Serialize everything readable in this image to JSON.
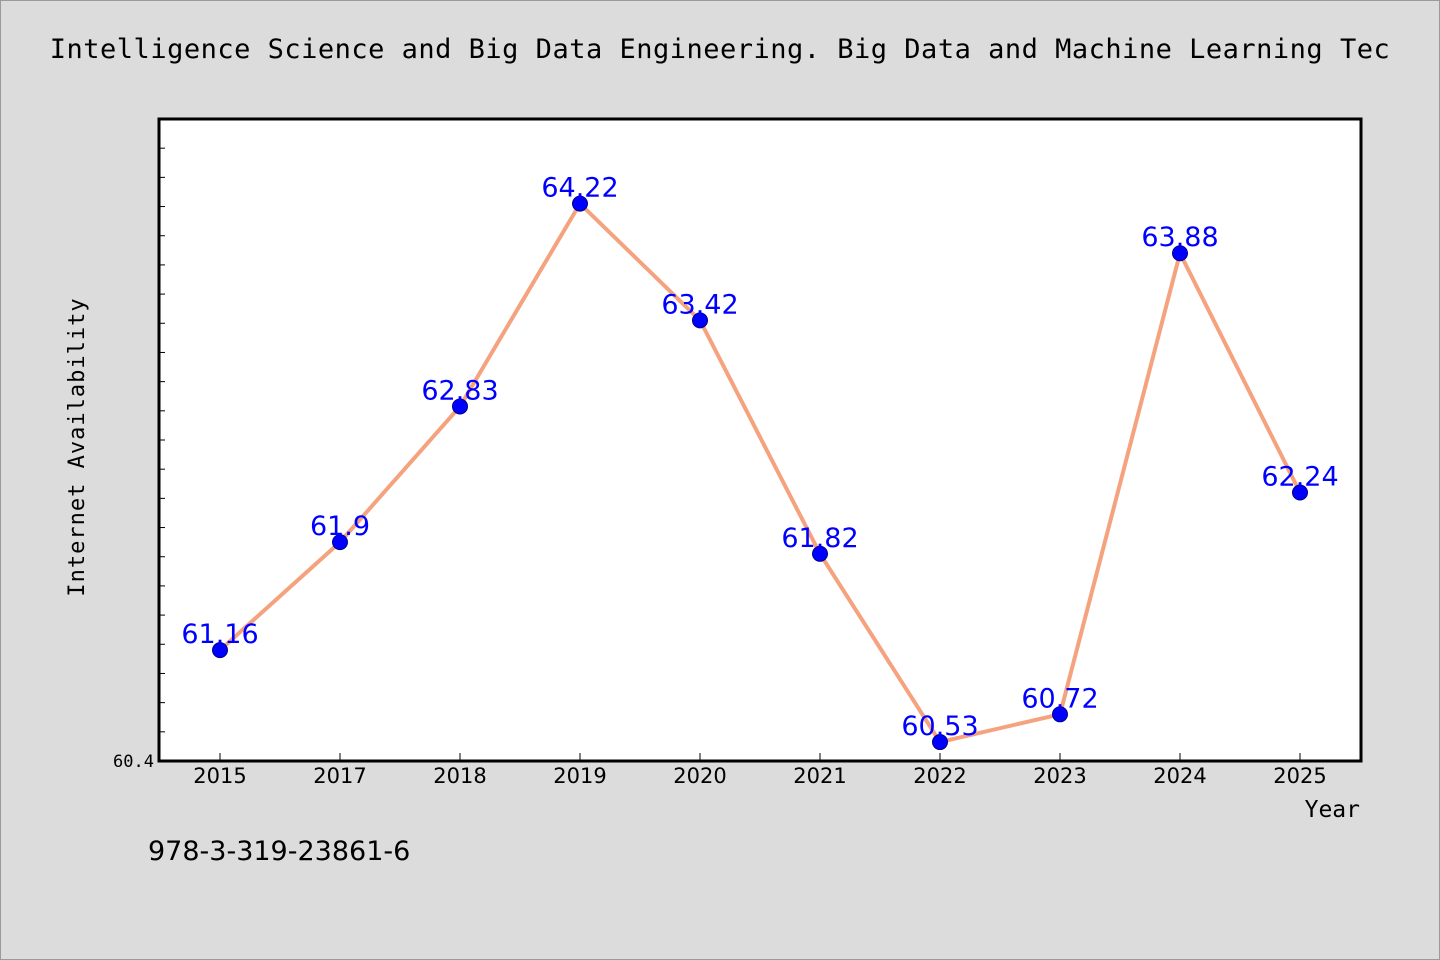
{
  "chart_data": {
    "type": "line",
    "title": "Intelligence Science and Big Data Engineering. Big Data and Machine Learning Tec",
    "xlabel": "Year",
    "ylabel": "Internet Availability",
    "categories": [
      "2015",
      "2017",
      "2018",
      "2019",
      "2020",
      "2021",
      "2022",
      "2023",
      "2024",
      "2025"
    ],
    "series": [
      {
        "values": [
          61.16,
          61.9,
          62.83,
          64.22,
          63.42,
          61.82,
          60.53,
          60.72,
          63.88,
          62.24
        ]
      }
    ],
    "data_labels": [
      "61.16",
      "61.9",
      "62.83",
      "64.22",
      "63.42",
      "61.82",
      "60.53",
      "60.72",
      "63.88",
      "62.24"
    ],
    "y_tick_labels": [
      "60.4"
    ],
    "ylim": [
      60.4,
      64.8
    ],
    "grid": false,
    "line_color": "#f5a27f",
    "marker_color": "#0000ff",
    "label_color": "#0000ff"
  },
  "footer_text": "978-3-319-23861-6"
}
